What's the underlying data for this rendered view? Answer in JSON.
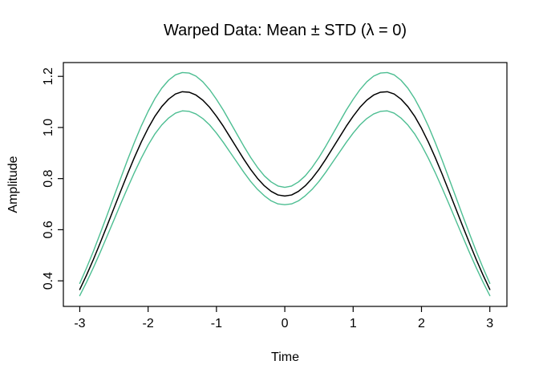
{
  "chart_data": {
    "type": "line",
    "title": "Warped Data: Mean ± STD (λ = 0)",
    "xlabel": "Time",
    "ylabel": "Amplitude",
    "x_range": [
      -3.24,
      3.25
    ],
    "y_range": [
      0.3,
      1.254
    ],
    "grid": false,
    "legend": "none",
    "x_tick_values": [
      -3,
      -2,
      -1,
      0,
      1,
      2,
      3
    ],
    "x_tick_labels": [
      "-3",
      "-2",
      "-1",
      "0",
      "1",
      "2",
      "3"
    ],
    "y_tick_values": [
      0.4,
      0.6,
      0.8,
      1.0,
      1.2
    ],
    "y_tick_labels": [
      "0.4",
      "0.6",
      "0.8",
      "1.0",
      "1.2"
    ],
    "mean_color": "#000000",
    "std_color": "#4DBE92",
    "series": [
      {
        "name": "mean",
        "color": "#000000"
      },
      {
        "name": "mean+std",
        "color": "#4DBE92"
      },
      {
        "name": "mean-std",
        "color": "#4DBE92"
      }
    ],
    "x": [
      -3,
      -2.9,
      -2.8,
      -2.7,
      -2.6,
      -2.5,
      -2.4,
      -2.3,
      -2.2,
      -2.1,
      -2,
      -1.9,
      -1.8,
      -1.7,
      -1.6,
      -1.5,
      -1.4,
      -1.3,
      -1.2,
      -1.1,
      -1,
      -0.9,
      -0.8,
      -0.7,
      -0.6,
      -0.5,
      -0.4,
      -0.3,
      -0.2,
      -0.1,
      0,
      0.1,
      0.2,
      0.3,
      0.4,
      0.5,
      0.6,
      0.7,
      0.8,
      0.9,
      1,
      1.1,
      1.2,
      1.3,
      1.4,
      1.5,
      1.6,
      1.7,
      1.8,
      1.9,
      2,
      2.1,
      2.2,
      2.3,
      2.4,
      2.5,
      2.6,
      2.7,
      2.8,
      2.9,
      3
    ],
    "mean": [
      0.366,
      0.423,
      0.484,
      0.549,
      0.616,
      0.684,
      0.752,
      0.819,
      0.883,
      0.943,
      0.997,
      1.044,
      1.082,
      1.111,
      1.131,
      1.14,
      1.138,
      1.127,
      1.107,
      1.079,
      1.044,
      1.005,
      0.962,
      0.919,
      0.876,
      0.836,
      0.801,
      0.772,
      0.75,
      0.736,
      0.732,
      0.736,
      0.75,
      0.772,
      0.801,
      0.836,
      0.876,
      0.919,
      0.962,
      1.005,
      1.044,
      1.079,
      1.107,
      1.127,
      1.138,
      1.14,
      1.131,
      1.111,
      1.082,
      1.044,
      0.997,
      0.943,
      0.883,
      0.819,
      0.752,
      0.684,
      0.616,
      0.549,
      0.484,
      0.423,
      0.366
    ],
    "std": [
      0.024,
      0.028,
      0.032,
      0.037,
      0.041,
      0.046,
      0.05,
      0.055,
      0.059,
      0.063,
      0.066,
      0.069,
      0.072,
      0.074,
      0.075,
      0.075,
      0.075,
      0.074,
      0.072,
      0.069,
      0.066,
      0.063,
      0.059,
      0.055,
      0.051,
      0.047,
      0.043,
      0.039,
      0.037,
      0.035,
      0.034,
      0.035,
      0.037,
      0.039,
      0.043,
      0.047,
      0.051,
      0.055,
      0.059,
      0.063,
      0.066,
      0.069,
      0.072,
      0.074,
      0.075,
      0.075,
      0.075,
      0.074,
      0.072,
      0.069,
      0.066,
      0.063,
      0.059,
      0.055,
      0.05,
      0.046,
      0.041,
      0.037,
      0.032,
      0.028,
      0.024
    ]
  }
}
